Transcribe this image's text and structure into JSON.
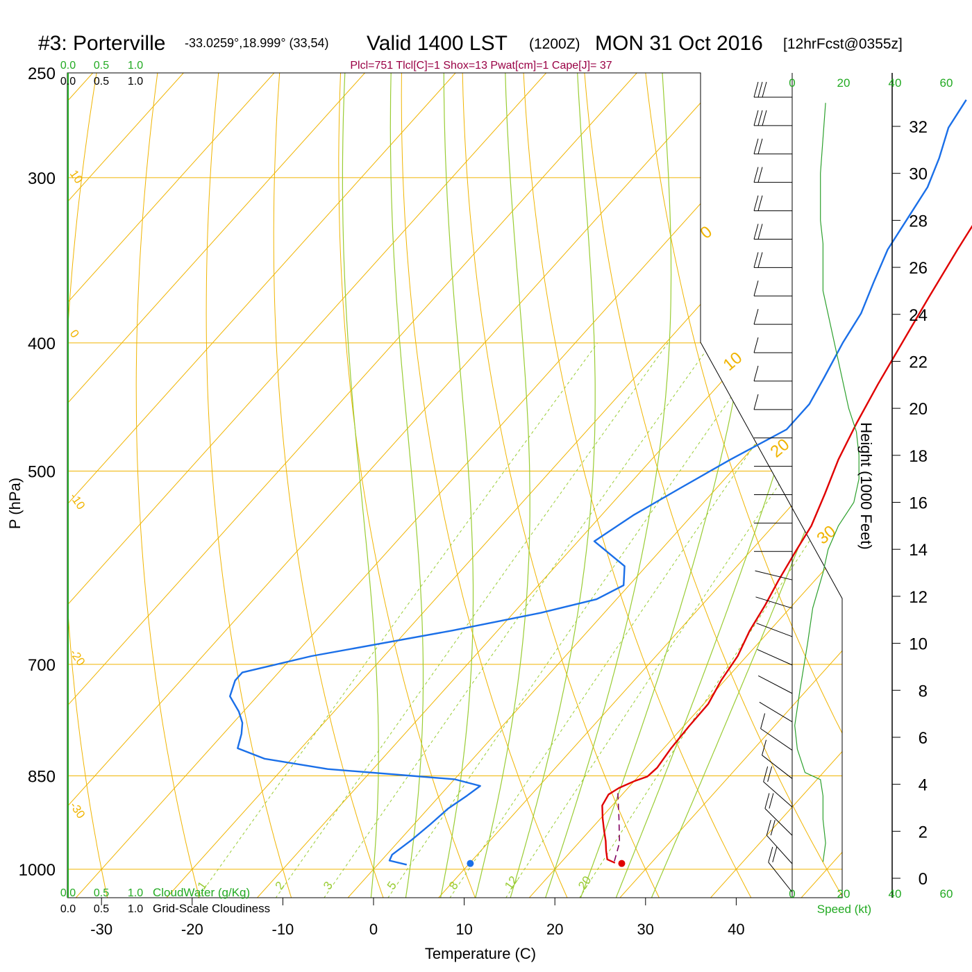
{
  "header": {
    "station": "#3: Porterville",
    "coords": "-33.0259°,18.999° (33,54)",
    "valid": "Valid 1400 LST",
    "utc": "(1200Z)",
    "date": "MON 31 Oct 2016",
    "fcst": "[12hrFcst@0355z]",
    "indices": "Plcl=751 Tlcl[C]=1 Shox=13 Pwat[cm]=1 Cape[J]= 37"
  },
  "colors": {
    "temperature": "#e00000",
    "dewpoint": "#1a6fe8",
    "parcel": "#800060",
    "isotherm": "#f0b400",
    "dry_adiabat": "#f0b400",
    "moist_adiabat": "#99cc33",
    "mixing_ratio": "#99cc33",
    "wind_speed": "#2ca02c",
    "cloud_axis": "#22aa22",
    "indices_text": "#990044",
    "frame": "#000000"
  },
  "chart_data": {
    "type": "line",
    "xlabel": "Temperature (C)",
    "ylabel": "P (hPa)",
    "ylabel_right": "Height (1000 Feet)",
    "x_ticks": [
      "-30",
      "-20",
      "-10",
      "0",
      "10",
      "20",
      "30",
      "40"
    ],
    "x_tick_values": [
      -30,
      -20,
      -10,
      0,
      10,
      20,
      30,
      40
    ],
    "pressure_ticks": [
      "250",
      "300",
      "400",
      "500",
      "700",
      "850",
      "1000"
    ],
    "pressure_values": [
      250,
      300,
      400,
      500,
      700,
      850,
      1000
    ],
    "height_ticks": [
      "0",
      "2",
      "4",
      "6",
      "8",
      "10",
      "12",
      "14",
      "16",
      "18",
      "20",
      "22",
      "24",
      "26",
      "28",
      "30",
      "32"
    ],
    "dry_adiabat_labels": [
      "10",
      "0",
      "-10",
      "-20",
      "-30"
    ],
    "dry_adiabat_label_values": [
      10,
      0,
      -10,
      -20,
      -30
    ],
    "moist_labels": [
      "0",
      "10",
      "20",
      "30"
    ],
    "moist_label_values": [
      0,
      10,
      20,
      30
    ],
    "mixing_ratio_labels": [
      "1",
      "2",
      "3",
      "5",
      "8",
      "12",
      "20"
    ],
    "mixing_ratio_values": [
      1,
      2,
      3,
      5,
      8,
      12,
      20
    ],
    "cloud_top_labels": [
      "0.0",
      "0.5",
      "1.0"
    ],
    "cloud_top_labels_black": [
      "0.0",
      "0.5",
      "1.0"
    ],
    "cloud_bottom_labels": [
      "0.0",
      "0.5",
      "1.0"
    ],
    "cloud_bottom_title": "CloudWater (g/Kg)",
    "cloudiness_labels": [
      "0.0",
      "0.5",
      "1.0"
    ],
    "cloudiness_title": "Grid-Scale Cloudiness",
    "speed_ticks": [
      "0",
      "20",
      "40",
      "60"
    ],
    "speed_tick_values": [
      0,
      20,
      40,
      60
    ],
    "speed_label": "Speed (kt)",
    "series": [
      {
        "key": "temperature",
        "points": [
          [
            -0.8,
            262
          ],
          [
            0,
            285
          ],
          [
            1.3,
            310
          ],
          [
            2.9,
            340
          ],
          [
            4.5,
            370
          ],
          [
            5.8,
            395
          ],
          [
            7.5,
            430
          ],
          [
            9,
            460
          ],
          [
            10.6,
            490
          ],
          [
            12.5,
            520
          ],
          [
            14.2,
            550
          ],
          [
            15,
            575
          ],
          [
            16,
            605
          ],
          [
            17,
            632
          ],
          [
            17.8,
            660
          ],
          [
            19,
            690
          ],
          [
            19.6,
            720
          ],
          [
            20.5,
            750
          ],
          [
            20.6,
            780
          ],
          [
            20.8,
            810
          ],
          [
            21.2,
            838
          ],
          [
            21,
            851
          ],
          [
            20,
            858
          ],
          [
            19,
            868
          ],
          [
            18.5,
            878
          ],
          [
            18.9,
            895
          ],
          [
            20.2,
            915
          ],
          [
            21.6,
            935
          ],
          [
            22.8,
            952
          ],
          [
            23.8,
            968
          ],
          [
            24.8,
            983
          ],
          [
            26,
            989
          ]
        ]
      },
      {
        "key": "dewpoint",
        "points": [
          [
            -11,
            262
          ],
          [
            -10.2,
            275
          ],
          [
            -8.2,
            290
          ],
          [
            -6.6,
            305
          ],
          [
            -5.8,
            320
          ],
          [
            -4.8,
            340
          ],
          [
            -3.1,
            360
          ],
          [
            -1.4,
            380
          ],
          [
            -0.5,
            400
          ],
          [
            0.9,
            425
          ],
          [
            1.9,
            445
          ],
          [
            1.9,
            465
          ],
          [
            -1.3,
            490
          ],
          [
            -4,
            515
          ],
          [
            -6.5,
            540
          ],
          [
            -8.2,
            565
          ],
          [
            -2.4,
            590
          ],
          [
            -0.6,
            610
          ],
          [
            -2.2,
            625
          ],
          [
            -7,
            640
          ],
          [
            -15,
            660
          ],
          [
            -28,
            690
          ],
          [
            -34,
            710
          ],
          [
            -34,
            720
          ],
          [
            -33,
            740
          ],
          [
            -30.5,
            760
          ],
          [
            -29,
            775
          ],
          [
            -28,
            790
          ],
          [
            -27,
            810
          ],
          [
            -23,
            825
          ],
          [
            -15,
            840
          ],
          [
            -5,
            850
          ],
          [
            0,
            855
          ],
          [
            3.5,
            865
          ],
          [
            3,
            880
          ],
          [
            2.2,
            900
          ],
          [
            1.8,
            925
          ],
          [
            1.3,
            950
          ],
          [
            0.6,
            975
          ],
          [
            0.9,
            985
          ],
          [
            3.2,
            992
          ]
        ]
      },
      {
        "key": "parcel",
        "dashed": true,
        "points": [
          [
            19.4,
            876
          ],
          [
            22,
            915
          ],
          [
            24.5,
            955
          ],
          [
            25.8,
            987
          ]
        ]
      }
    ],
    "surface_temperature": 26.8,
    "surface_dewpoint": 10.1,
    "surface_pressure": 990,
    "wind_speed_profile": [
      [
        21,
        1
      ],
      [
        21,
        2
      ],
      [
        22,
        4
      ],
      [
        20,
        5
      ],
      [
        12,
        6
      ],
      [
        6,
        10
      ],
      [
        2,
        14
      ],
      [
        1,
        18
      ],
      [
        1,
        22
      ],
      [
        1.5,
        26
      ],
      [
        2,
        30
      ],
      [
        1,
        34
      ],
      [
        1,
        38
      ],
      [
        1,
        44
      ],
      [
        1,
        50
      ],
      [
        0,
        56
      ],
      [
        3,
        60
      ],
      [
        6,
        64
      ],
      [
        10,
        67
      ],
      [
        13,
        70
      ],
      [
        12,
        73
      ],
      [
        13,
        75
      ],
      [
        15,
        78
      ],
      [
        17,
        82
      ],
      [
        20,
        87
      ],
      [
        22,
        92
      ],
      [
        24,
        95
      ],
      [
        27,
        97
      ],
      [
        31,
        99
      ]
    ],
    "wind_speed_heights": [
      0.7,
      1.5,
      2.5,
      3.5,
      4.2,
      4.5,
      5.5,
      6.5,
      8,
      10,
      11.5,
      13,
      14,
      15,
      16,
      17,
      18,
      19,
      20,
      21,
      22,
      23,
      24,
      25,
      26,
      27,
      28,
      30,
      33
    ],
    "wind_speed_values": [
      12,
      13,
      12,
      12,
      11,
      5,
      2,
      1,
      3,
      6,
      8,
      12,
      14,
      18,
      24,
      26,
      26,
      25,
      22,
      20,
      18,
      16,
      14,
      12,
      12,
      12,
      11,
      11,
      13
    ]
  }
}
